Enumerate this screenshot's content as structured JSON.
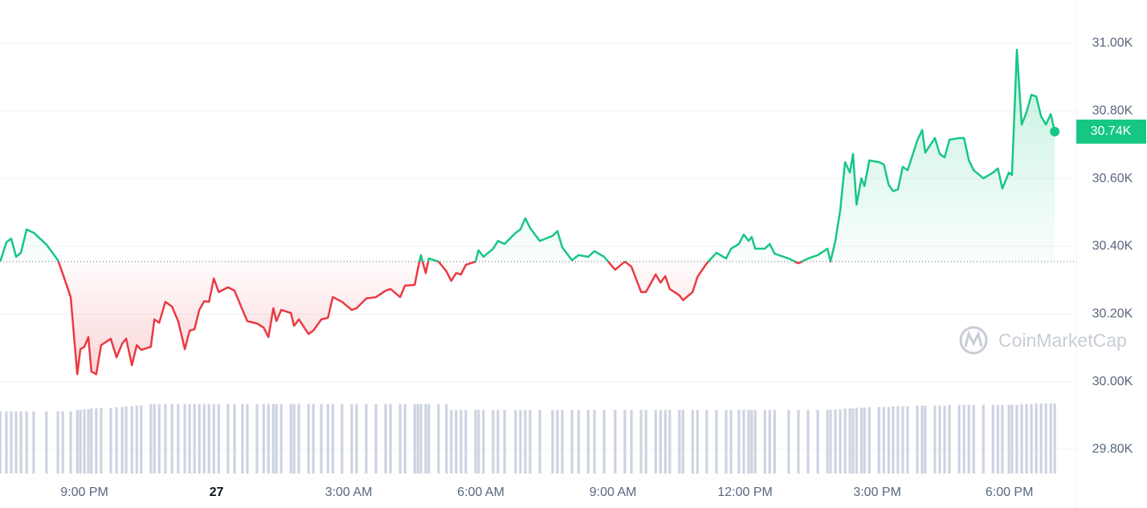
{
  "chart_data": {
    "type": "line",
    "xlim": [
      -1.915,
      22.52
    ],
    "ylim": [
      29705,
      31128
    ],
    "xticks": [
      {
        "value": 0,
        "label": "9:00 PM"
      },
      {
        "value": 3,
        "label": "27"
      },
      {
        "value": 6,
        "label": "3:00 AM"
      },
      {
        "value": 9,
        "label": "6:00 AM"
      },
      {
        "value": 12,
        "label": "9:00 AM"
      },
      {
        "value": 15,
        "label": "12:00 PM"
      },
      {
        "value": 18,
        "label": "3:00 PM"
      },
      {
        "value": 21,
        "label": "6:00 PM"
      }
    ],
    "yticks": [
      {
        "value": 29800,
        "label": "29.80K"
      },
      {
        "value": 30000,
        "label": "30.00K"
      },
      {
        "value": 30200,
        "label": "30.20K"
      },
      {
        "value": 30400,
        "label": "30.40K"
      },
      {
        "value": 30600,
        "label": "30.60K"
      },
      {
        "value": 30800,
        "label": "30.80K"
      },
      {
        "value": 31000,
        "label": "31.00K"
      }
    ],
    "grid": true,
    "baseline": 30355,
    "up_color": "#16c784",
    "down_color": "#ea3943",
    "volume_color": "#cdd3e0",
    "last_value_label": "30.74K",
    "watermark": "CoinMarketCap",
    "volume_lim": [
      0,
      100
    ],
    "x": [
      -1.91,
      -1.77,
      -1.66,
      -1.55,
      -1.44,
      -1.31,
      -1.15,
      -0.86,
      -0.6,
      -0.49,
      -0.31,
      -0.16,
      -0.09,
      0,
      0.09,
      0.16,
      0.27,
      0.38,
      0.6,
      0.73,
      0.86,
      0.95,
      1.08,
      1.19,
      1.29,
      1.51,
      1.59,
      1.7,
      1.84,
      1.99,
      2.13,
      2.28,
      2.39,
      2.5,
      2.61,
      2.72,
      2.83,
      2.94,
      3.05,
      3.26,
      3.41,
      3.59,
      3.7,
      3.92,
      4.07,
      4.18,
      4.29,
      4.36,
      4.47,
      4.69,
      4.76,
      4.87,
      5.09,
      5.2,
      5.38,
      5.53,
      5.64,
      5.85,
      6.07,
      6.18,
      6.4,
      6.62,
      6.84,
      6.95,
      7.17,
      7.28,
      7.5,
      7.57,
      7.64,
      7.75,
      7.82,
      8.04,
      8.22,
      8.33,
      8.44,
      8.55,
      8.66,
      8.88,
      8.95,
      9.06,
      9.28,
      9.39,
      9.54,
      9.79,
      9.9,
      10.01,
      10.12,
      10.34,
      10.63,
      10.74,
      10.85,
      11.07,
      11.22,
      11.44,
      11.58,
      11.8,
      12.05,
      12.27,
      12.42,
      12.64,
      12.75,
      12.97,
      13.08,
      13.19,
      13.29,
      13.51,
      13.59,
      13.81,
      13.92,
      14.13,
      14.35,
      14.57,
      14.68,
      14.86,
      14.97,
      15.08,
      15.15,
      15.23,
      15.45,
      15.56,
      15.67,
      15.99,
      16.21,
      16.43,
      16.65,
      16.87,
      16.94,
      17.05,
      17.16,
      17.27,
      17.38,
      17.45,
      17.53,
      17.64,
      17.71,
      17.82,
      18.04,
      18.15,
      18.26,
      18.36,
      18.47,
      18.58,
      18.69,
      18.91,
      19.02,
      19.09,
      19.31,
      19.42,
      19.53,
      19.64,
      19.86,
      19.97,
      20.08,
      20.19,
      20.41,
      20.63,
      20.74,
      20.84,
      20.99,
      21.06,
      21.17,
      21.28,
      21.39,
      21.5,
      21.61,
      21.72,
      21.83,
      21.94,
      22.03
    ],
    "series": [
      {
        "values": [
          30355,
          30412,
          30423,
          30369,
          30381,
          30450,
          30440,
          30405,
          30359,
          30319,
          30250,
          30022,
          30096,
          30103,
          30132,
          30030,
          30022,
          30108,
          30127,
          30072,
          30113,
          30127,
          30049,
          30108,
          30094,
          30103,
          30184,
          30174,
          30236,
          30222,
          30179,
          30096,
          30151,
          30155,
          30212,
          30238,
          30236,
          30305,
          30265,
          30279,
          30269,
          30212,
          30179,
          30172,
          30160,
          30132,
          30217,
          30179,
          30212,
          30203,
          30165,
          30184,
          30141,
          30151,
          30184,
          30189,
          30250,
          30236,
          30212,
          30217,
          30246,
          30250,
          30269,
          30274,
          30250,
          30284,
          30286,
          30333,
          30374,
          30321,
          30364,
          30355,
          30326,
          30298,
          30321,
          30317,
          30345,
          30355,
          30388,
          30369,
          30393,
          30416,
          30407,
          30440,
          30450,
          30483,
          30454,
          30416,
          30431,
          30445,
          30397,
          30359,
          30374,
          30369,
          30386,
          30369,
          30331,
          30355,
          30340,
          30265,
          30265,
          30317,
          30293,
          30312,
          30274,
          30255,
          30241,
          30265,
          30310,
          30350,
          30381,
          30364,
          30393,
          30407,
          30435,
          30416,
          30428,
          30393,
          30393,
          30407,
          30378,
          30364,
          30350,
          30364,
          30374,
          30393,
          30355,
          30416,
          30507,
          30649,
          30618,
          30673,
          30523,
          30601,
          30578,
          30654,
          30649,
          30642,
          30582,
          30563,
          30568,
          30635,
          30625,
          30713,
          30744,
          30677,
          30720,
          30673,
          30663,
          30715,
          30720,
          30720,
          30654,
          30625,
          30601,
          30618,
          30630,
          30571,
          30618,
          30611,
          30981,
          30760,
          30796,
          30848,
          30843,
          30784,
          30760,
          30791,
          30739
        ]
      },
      {
        "type": "bar",
        "axis": "volume",
        "values": [
          86,
          86,
          86,
          86,
          86,
          86,
          86,
          86,
          86,
          86,
          86,
          88,
          88,
          89,
          89,
          90,
          90,
          91,
          91,
          92,
          92,
          93,
          93,
          94,
          94,
          96,
          96,
          96,
          96,
          96,
          96,
          96,
          96,
          96,
          96,
          96,
          96,
          96,
          96,
          96,
          96,
          96,
          96,
          96,
          96,
          96,
          96,
          96,
          96,
          96,
          96,
          96,
          96,
          96,
          96,
          96,
          96,
          96,
          96,
          96,
          96,
          96,
          96,
          96,
          96,
          96,
          96,
          96,
          96,
          96,
          96,
          96,
          96,
          88,
          88,
          88,
          88,
          88,
          88,
          88,
          88,
          88,
          88,
          88,
          88,
          88,
          88,
          88,
          88,
          88,
          88,
          88,
          88,
          88,
          88,
          88,
          88,
          88,
          88,
          88,
          88,
          88,
          88,
          88,
          88,
          88,
          88,
          88,
          88,
          88,
          88,
          88,
          88,
          88,
          88,
          88,
          88,
          88,
          88,
          88,
          88,
          88,
          88,
          88,
          88,
          88,
          88,
          89,
          89,
          90,
          90,
          90,
          91,
          91,
          91,
          92,
          92,
          92,
          92,
          93,
          93,
          93,
          93,
          94,
          94,
          94,
          94,
          94,
          94,
          95,
          95,
          95,
          95,
          95,
          95,
          95,
          95,
          95,
          95,
          95,
          95,
          96,
          96,
          96,
          97,
          97,
          97,
          97,
          97
        ]
      }
    ]
  }
}
